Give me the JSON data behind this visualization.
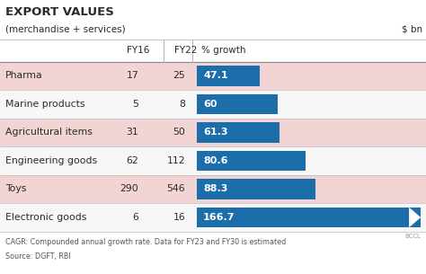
{
  "title": "EXPORT VALUES",
  "subtitle": "(merchandise + services)",
  "unit": "$ bn",
  "header_fy16": "FY16",
  "header_fy22": "FY22",
  "header_growth": "% growth",
  "categories": [
    "Pharma",
    "Marine products",
    "Agricultural items",
    "Engineering goods",
    "Toys",
    "Electronic goods"
  ],
  "fy16": [
    "17",
    "5",
    "31",
    "62",
    "290",
    "6"
  ],
  "fy22": [
    "25",
    "8",
    "50",
    "112",
    "546",
    "16"
  ],
  "growth": [
    47.1,
    60.0,
    61.3,
    80.6,
    88.3,
    166.7
  ],
  "growth_labels": [
    "47.1",
    "60",
    "61.3",
    "80.6",
    "88.3",
    "166.7"
  ],
  "max_growth": 166.7,
  "bar_color": "#1b6eaa",
  "row_bg_pink": "#f2d4d4",
  "row_bg_white": "#f7f7f7",
  "row_pink_indices": [
    0,
    2,
    4
  ],
  "header_bg": "#ffffff",
  "text_color": "#2a2a2a",
  "text_color_bar": "#ffffff",
  "footer_text1": "CAGR: Compounded annual growth rate. Data for FY23 and FY30 is estimated",
  "footer_text2": "Source: DGFT, RBI",
  "watermark": "BCCL",
  "bg_color": "#ffffff",
  "sep_line_color": "#bbbbbb",
  "header_line_color": "#888888",
  "vert_sep_color": "#aaaaaa"
}
